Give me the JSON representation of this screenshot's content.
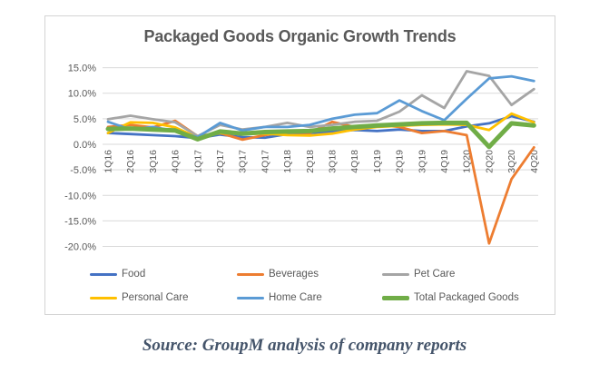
{
  "chart_data": {
    "type": "line",
    "title": "Packaged Goods Organic Growth Trends",
    "categories": [
      "1Q16",
      "2Q16",
      "3Q16",
      "4Q16",
      "1Q17",
      "2Q17",
      "3Q17",
      "4Q17",
      "1Q18",
      "2Q18",
      "3Q18",
      "4Q18",
      "1Q19",
      "2Q19",
      "3Q19",
      "4Q19",
      "1Q20",
      "2Q20",
      "3Q20",
      "4Q20"
    ],
    "series": [
      {
        "name": "Food",
        "color": "#4472C4",
        "stroke_width": 2.8,
        "values": [
          2.2,
          2.0,
          1.8,
          1.6,
          1.2,
          1.9,
          1.4,
          1.3,
          2.0,
          2.2,
          2.5,
          2.8,
          2.6,
          2.9,
          2.6,
          2.6,
          3.5,
          4.1,
          5.5,
          4.4
        ]
      },
      {
        "name": "Beverages",
        "color": "#ED7D31",
        "stroke_width": 2.8,
        "values": [
          3.4,
          3.8,
          3.3,
          4.6,
          1.6,
          2.2,
          0.9,
          1.8,
          2.4,
          2.2,
          4.4,
          3.4,
          3.8,
          3.4,
          2.2,
          2.6,
          1.8,
          -19.4,
          -6.8,
          -0.6
        ]
      },
      {
        "name": "Pet Care",
        "color": "#A5A5A5",
        "stroke_width": 2.8,
        "values": [
          4.9,
          5.6,
          4.9,
          4.3,
          1.6,
          3.8,
          2.9,
          3.4,
          4.2,
          3.4,
          3.8,
          4.4,
          4.6,
          6.4,
          9.6,
          7.1,
          14.3,
          13.4,
          7.7,
          10.8
        ]
      },
      {
        "name": "Personal Care",
        "color": "#FFC000",
        "stroke_width": 2.8,
        "values": [
          2.2,
          4.3,
          4.2,
          3.3,
          1.3,
          2.2,
          2.0,
          2.1,
          1.8,
          1.7,
          2.1,
          2.9,
          3.4,
          3.6,
          3.8,
          3.9,
          3.8,
          2.8,
          6.0,
          4.3
        ]
      },
      {
        "name": "Home Care",
        "color": "#5B9BD5",
        "stroke_width": 2.8,
        "values": [
          4.4,
          2.9,
          3.4,
          2.6,
          1.4,
          4.2,
          2.7,
          3.4,
          3.4,
          3.8,
          5.0,
          5.8,
          6.1,
          8.6,
          6.5,
          4.7,
          8.9,
          12.9,
          13.3,
          12.4
        ]
      },
      {
        "name": "Total Packaged Goods",
        "color": "#70AD47",
        "stroke_width": 5,
        "values": [
          3.0,
          3.1,
          2.9,
          2.7,
          1.0,
          2.5,
          2.1,
          2.4,
          2.5,
          2.6,
          3.1,
          3.4,
          3.7,
          3.9,
          4.1,
          4.2,
          4.2,
          -0.5,
          4.1,
          3.7
        ]
      }
    ],
    "yticks": {
      "values": [
        15,
        10,
        5,
        0,
        -5,
        -10,
        -15,
        -20
      ],
      "labels": [
        "15.0%",
        "10.0%",
        "5.0%",
        "0.0%",
        "-5.0%",
        "-10.0%",
        "-15.0%",
        "-20.0%"
      ]
    },
    "ylim": [
      -20,
      15
    ],
    "y_unit": "%",
    "grid": "horizontal",
    "legend_position": "bottom"
  },
  "source_note": "Source: GroupM analysis of company reports",
  "colors": {
    "gridline": "#D9D9D9",
    "axis_text": "#595959",
    "title_text": "#595959",
    "panel_border": "#D3D3D3",
    "source_text": "#44546A"
  }
}
